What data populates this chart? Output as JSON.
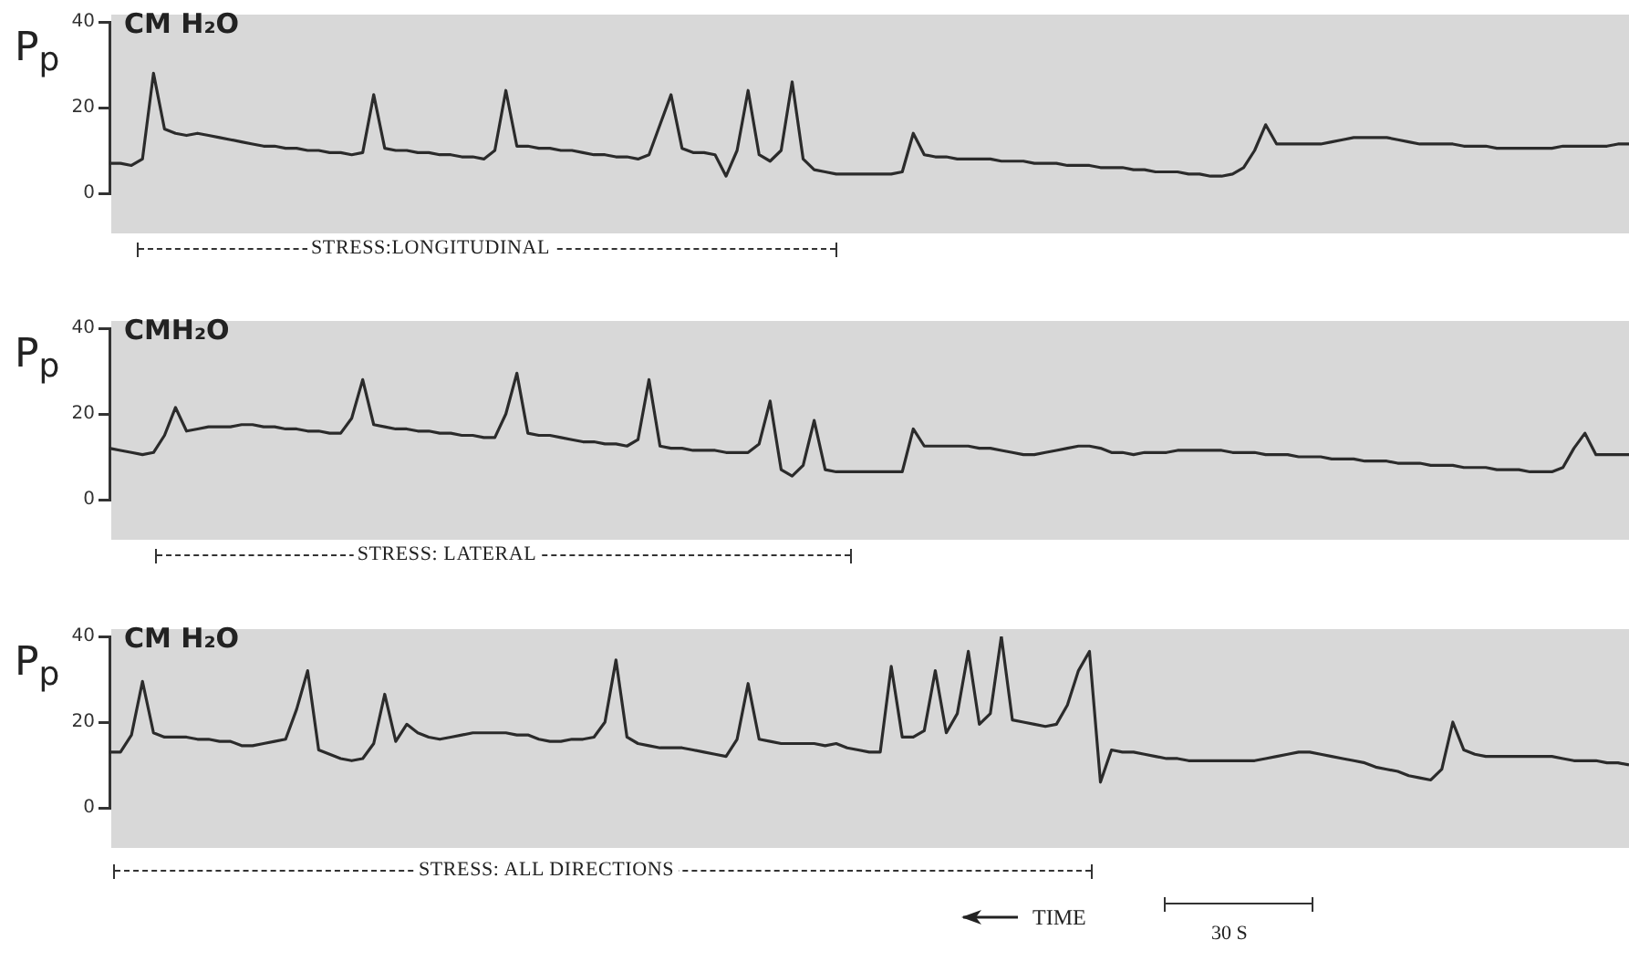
{
  "chart_data": [
    {
      "type": "line",
      "ylabel": "P$_{p}$",
      "ylim": [
        0,
        40
      ],
      "yticks": [
        0,
        20,
        40
      ],
      "marker": "none",
      "annotations": [
        "CM H₂O",
        "STRESS:LONGITUDINAL"
      ],
      "categories": [
        null,
        null,
        null,
        null,
        null,
        null,
        null,
        null,
        null,
        null,
        null,
        null,
        null,
        null,
        null,
        null,
        null,
        null,
        null,
        null,
        null,
        null,
        null,
        null,
        null,
        null,
        null,
        null,
        null,
        null,
        null,
        null,
        null,
        null,
        null,
        null,
        null,
        null,
        null,
        null,
        null,
        null,
        null,
        null,
        null,
        null,
        null,
        null,
        null,
        null,
        null,
        null,
        null,
        null,
        null,
        null,
        null,
        null,
        null,
        null,
        null,
        null,
        null,
        null,
        null,
        null,
        null,
        null,
        null,
        null,
        null,
        null,
        null,
        null,
        null,
        null,
        null,
        null,
        null,
        null,
        null,
        null,
        null,
        null,
        null,
        null,
        null,
        null,
        null,
        null,
        null,
        null,
        null,
        null,
        null,
        null,
        null,
        null,
        null,
        null,
        null,
        null,
        null,
        null,
        null,
        null,
        null,
        null,
        null,
        null,
        null,
        null,
        null,
        null,
        null,
        null,
        null,
        null,
        null,
        null,
        null,
        null,
        null,
        null,
        null,
        null,
        null,
        null,
        null,
        null,
        null,
        null,
        null,
        null,
        null,
        null,
        null,
        null,
        null
      ],
      "series": [
        {
          "color": "#2b2b2b",
          "values": [
            7,
            7,
            6.5,
            8,
            28,
            15,
            14,
            13.5,
            14,
            13.5,
            13,
            12.5,
            12,
            11.5,
            11,
            11,
            10.5,
            10.5,
            10,
            10,
            9.5,
            9.5,
            9,
            9.5,
            23,
            10.5,
            10,
            10,
            9.5,
            9.5,
            9,
            9,
            8.5,
            8.5,
            8,
            10,
            24,
            11,
            11,
            10.5,
            10.5,
            10,
            10,
            9.5,
            9,
            9,
            8.5,
            8.5,
            8,
            9,
            16,
            23,
            10.5,
            9.5,
            9.5,
            9,
            4,
            10,
            24,
            9,
            7.5,
            10,
            26,
            8,
            5.5,
            5,
            4.5,
            4.5,
            4.5,
            4.5,
            4.5,
            4.5,
            5,
            14,
            9,
            8.5,
            8.5,
            8,
            8,
            8,
            8,
            7.5,
            7.5,
            7.5,
            7,
            7,
            7,
            6.5,
            6.5,
            6.5,
            6,
            6,
            6,
            5.5,
            5.5,
            5,
            5,
            5,
            4.5,
            4.5,
            4,
            4,
            4.5,
            6,
            10,
            16,
            11.5,
            11.5,
            11.5,
            11.5,
            11.5,
            12,
            12.5,
            13,
            13,
            13,
            13,
            12.5,
            12,
            11.5,
            11.5,
            11.5,
            11.5,
            11,
            11,
            11,
            10.5,
            10.5,
            10.5,
            10.5,
            10.5,
            10.5,
            11,
            11,
            11,
            11,
            11,
            11.5,
            11.5
          ]
        }
      ]
    },
    {
      "type": "line",
      "ylabel": "P$_{p}$",
      "ylim": [
        0,
        40
      ],
      "yticks": [
        0,
        20,
        40
      ],
      "marker": "none",
      "annotations": [
        "CMH₂O",
        "STRESS: LATERAL"
      ],
      "categories": [
        null,
        null,
        null,
        null,
        null,
        null,
        null,
        null,
        null,
        null,
        null,
        null,
        null,
        null,
        null,
        null,
        null,
        null,
        null,
        null,
        null,
        null,
        null,
        null,
        null,
        null,
        null,
        null,
        null,
        null,
        null,
        null,
        null,
        null,
        null,
        null,
        null,
        null,
        null,
        null,
        null,
        null,
        null,
        null,
        null,
        null,
        null,
        null,
        null,
        null,
        null,
        null,
        null,
        null,
        null,
        null,
        null,
        null,
        null,
        null,
        null,
        null,
        null,
        null,
        null,
        null,
        null,
        null,
        null,
        null,
        null,
        null,
        null,
        null,
        null,
        null,
        null,
        null,
        null,
        null,
        null,
        null,
        null,
        null,
        null,
        null,
        null,
        null,
        null,
        null,
        null,
        null,
        null,
        null,
        null,
        null,
        null,
        null,
        null,
        null,
        null,
        null,
        null,
        null,
        null,
        null,
        null,
        null,
        null,
        null,
        null,
        null,
        null,
        null,
        null,
        null,
        null,
        null,
        null,
        null,
        null,
        null,
        null,
        null,
        null,
        null,
        null,
        null,
        null,
        null,
        null,
        null,
        null,
        null,
        null,
        null,
        null,
        null,
        null
      ],
      "series": [
        {
          "color": "#2b2b2b",
          "values": [
            12,
            11.5,
            11,
            10.5,
            11,
            15,
            21.5,
            16,
            16.5,
            17,
            17,
            17,
            17.5,
            17.5,
            17,
            17,
            16.5,
            16.5,
            16,
            16,
            15.5,
            15.5,
            19,
            28,
            17.5,
            17,
            16.5,
            16.5,
            16,
            16,
            15.5,
            15.5,
            15,
            15,
            14.5,
            14.5,
            20,
            29.5,
            15.5,
            15,
            15,
            14.5,
            14,
            13.5,
            13.5,
            13,
            13,
            12.5,
            14,
            28,
            12.5,
            12,
            12,
            11.5,
            11.5,
            11.5,
            11,
            11,
            11,
            13,
            23,
            7,
            5.5,
            8,
            18.5,
            7,
            6.5,
            6.5,
            6.5,
            6.5,
            6.5,
            6.5,
            6.5,
            16.5,
            12.5,
            12.5,
            12.5,
            12.5,
            12.5,
            12,
            12,
            11.5,
            11,
            10.5,
            10.5,
            11,
            11.5,
            12,
            12.5,
            12.5,
            12,
            11,
            11,
            10.5,
            11,
            11,
            11,
            11.5,
            11.5,
            11.5,
            11.5,
            11.5,
            11,
            11,
            11,
            10.5,
            10.5,
            10.5,
            10,
            10,
            10,
            9.5,
            9.5,
            9.5,
            9,
            9,
            9,
            8.5,
            8.5,
            8.5,
            8,
            8,
            8,
            7.5,
            7.5,
            7.5,
            7,
            7,
            7,
            6.5,
            6.5,
            6.5,
            7.5,
            12,
            15.5,
            10.5,
            10.5,
            10.5,
            10.5
          ]
        }
      ]
    },
    {
      "type": "line",
      "ylabel": "P$_{p}$",
      "ylim": [
        0,
        40
      ],
      "yticks": [
        0,
        20,
        40
      ],
      "marker": "none",
      "annotations": [
        "CM H₂O",
        "STRESS: ALL DIRECTIONS",
        "TIME",
        "30 S"
      ],
      "categories": [
        null,
        null,
        null,
        null,
        null,
        null,
        null,
        null,
        null,
        null,
        null,
        null,
        null,
        null,
        null,
        null,
        null,
        null,
        null,
        null,
        null,
        null,
        null,
        null,
        null,
        null,
        null,
        null,
        null,
        null,
        null,
        null,
        null,
        null,
        null,
        null,
        null,
        null,
        null,
        null,
        null,
        null,
        null,
        null,
        null,
        null,
        null,
        null,
        null,
        null,
        null,
        null,
        null,
        null,
        null,
        null,
        null,
        null,
        null,
        null,
        null,
        null,
        null,
        null,
        null,
        null,
        null,
        null,
        null,
        null,
        null,
        null,
        null,
        null,
        null,
        null,
        null,
        null,
        null,
        null,
        null,
        null,
        null,
        null,
        null,
        null,
        null,
        null,
        null,
        null,
        null,
        null,
        null,
        null,
        null,
        null,
        null,
        null,
        null,
        null,
        null,
        null,
        null,
        null,
        null,
        null,
        null,
        null,
        null,
        null,
        null,
        null,
        null,
        null,
        null,
        null,
        null,
        null,
        null,
        null,
        null,
        null,
        null,
        null,
        null,
        null,
        null,
        null,
        null,
        null,
        null,
        null,
        null,
        null,
        null,
        null,
        null,
        null,
        null
      ],
      "series": [
        {
          "color": "#2b2b2b",
          "values": [
            13,
            13,
            17,
            29.5,
            17.5,
            16.5,
            16.5,
            16.5,
            16,
            16,
            15.5,
            15.5,
            14.5,
            14.5,
            15,
            15.5,
            16,
            23,
            32,
            13.5,
            12.5,
            11.5,
            11,
            11.5,
            15,
            26.5,
            15.5,
            19.5,
            17.5,
            16.5,
            16,
            16.5,
            17,
            17.5,
            17.5,
            17.5,
            17.5,
            17,
            17,
            16,
            15.5,
            15.5,
            16,
            16,
            16.5,
            20,
            34.5,
            16.5,
            15,
            14.5,
            14,
            14,
            14,
            13.5,
            13,
            12.5,
            12,
            16,
            29,
            16,
            15.5,
            15,
            15,
            15,
            15,
            14.5,
            15,
            14,
            13.5,
            13,
            13,
            33,
            16.5,
            16.5,
            18,
            32,
            17.5,
            22,
            36.5,
            19.5,
            22,
            40,
            20.5,
            20,
            19.5,
            19,
            19.5,
            24,
            32,
            36.5,
            6,
            13.5,
            13,
            13,
            12.5,
            12,
            11.5,
            11.5,
            11,
            11,
            11,
            11,
            11,
            11,
            11,
            11.5,
            12,
            12.5,
            13,
            13,
            12.5,
            12,
            11.5,
            11,
            10.5,
            9.5,
            9,
            8.5,
            7.5,
            7,
            6.5,
            9,
            20,
            13.5,
            12.5,
            12,
            12,
            12,
            12,
            12,
            12,
            12,
            11.5,
            11,
            11,
            11,
            10.5,
            10.5,
            10
          ]
        }
      ]
    }
  ]
}
